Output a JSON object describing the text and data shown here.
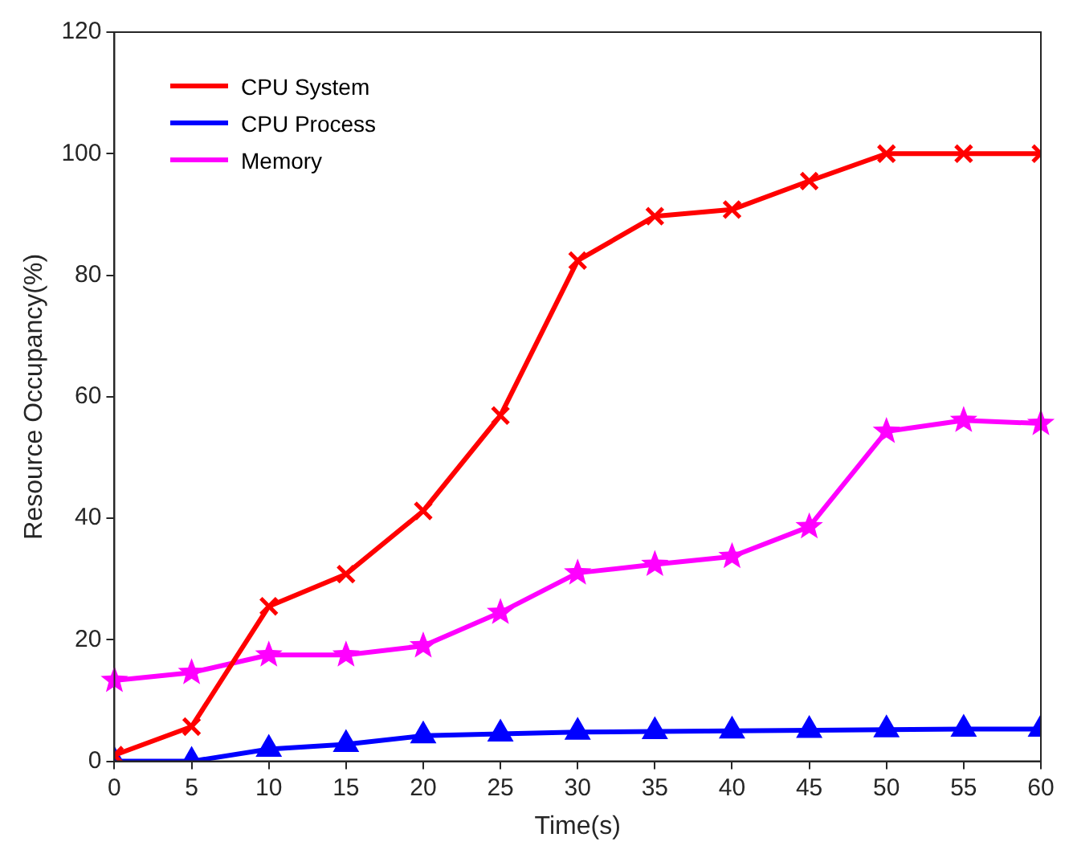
{
  "chart_data": {
    "type": "line",
    "xlabel": "Time(s)",
    "ylabel": "Resource Occupancy(%)",
    "x": [
      0,
      5,
      10,
      15,
      20,
      25,
      30,
      35,
      40,
      45,
      50,
      55,
      60
    ],
    "xlim": [
      0,
      60
    ],
    "xticks": [
      0,
      5,
      10,
      15,
      20,
      25,
      30,
      35,
      40,
      45,
      50,
      55,
      60
    ],
    "ylim": [
      0,
      120
    ],
    "yticks": [
      0,
      20,
      40,
      60,
      80,
      100,
      120
    ],
    "grid": false,
    "legend": "top left",
    "line_style": "solid",
    "series": [
      {
        "name": "CPU System",
        "color": "#ff0000",
        "marker": "cross",
        "values": [
          1,
          5.7,
          25.5,
          30.8,
          41.2,
          56.9,
          82.4,
          89.7,
          90.8,
          95.5,
          100,
          100,
          100
        ]
      },
      {
        "name": "CPU Process",
        "color": "#0000ff",
        "marker": "triangle",
        "values": [
          0,
          0,
          2,
          2.8,
          4.2,
          4.5,
          4.8,
          4.9,
          5,
          5.1,
          5.2,
          5.3,
          5.3
        ]
      },
      {
        "name": "Memory",
        "color": "#ff00ff",
        "marker": "star",
        "values": [
          13.3,
          14.6,
          17.5,
          17.5,
          19,
          24.5,
          31,
          32.4,
          33.7,
          38.6,
          54.3,
          56.1,
          55.6
        ]
      }
    ]
  }
}
